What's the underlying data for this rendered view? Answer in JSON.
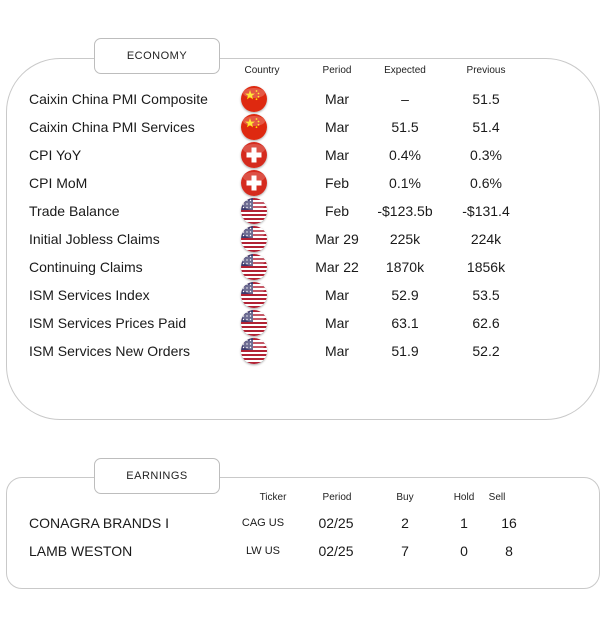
{
  "economy": {
    "title": "ECONOMY",
    "headers": {
      "country": "Country",
      "period": "Period",
      "expected": "Expected",
      "previous": "Previous"
    },
    "rows": [
      {
        "name": "Caixin China PMI Composite",
        "flag": "china-flag-icon",
        "period": "Mar",
        "expected": "–",
        "previous": "51.5"
      },
      {
        "name": "Caixin China PMI Services",
        "flag": "china-flag-icon",
        "period": "Mar",
        "expected": "51.5",
        "previous": "51.4"
      },
      {
        "name": "CPI YoY",
        "flag": "switzerland-flag-icon",
        "period": "Mar",
        "expected": "0.4%",
        "previous": "0.3%"
      },
      {
        "name": "CPI MoM",
        "flag": "switzerland-flag-icon",
        "period": "Feb",
        "expected": "0.1%",
        "previous": "0.6%"
      },
      {
        "name": "Trade Balance",
        "flag": "usa-flag-icon",
        "period": "Feb",
        "expected": "-$123.5b",
        "previous": "-$131.4"
      },
      {
        "name": "Initial Jobless Claims",
        "flag": "usa-flag-icon",
        "period": "Mar 29",
        "expected": "225k",
        "previous": "224k"
      },
      {
        "name": "Continuing Claims",
        "flag": "usa-flag-icon",
        "period": "Mar 22",
        "expected": "1870k",
        "previous": "1856k"
      },
      {
        "name": "ISM Services Index",
        "flag": "usa-flag-icon",
        "period": "Mar",
        "expected": "52.9",
        "previous": "53.5"
      },
      {
        "name": "ISM Services Prices Paid",
        "flag": "usa-flag-icon",
        "period": "Mar",
        "expected": "63.1",
        "previous": "62.6"
      },
      {
        "name": "ISM Services New Orders",
        "flag": "usa-flag-icon",
        "period": "Mar",
        "expected": "51.9",
        "previous": "52.2"
      }
    ]
  },
  "earnings": {
    "title": "EARNINGS",
    "headers": {
      "ticker": "Ticker",
      "period": "Period",
      "buy": "Buy",
      "hold": "Hold",
      "sell": "Sell"
    },
    "rows": [
      {
        "name": "CONAGRA BRANDS I",
        "ticker": "CAG US",
        "period": "02/25",
        "buy": "2",
        "hold": "1",
        "sell": "16"
      },
      {
        "name": "LAMB WESTON",
        "ticker": "LW US",
        "period": "02/25",
        "buy": "7",
        "hold": "0",
        "sell": "8"
      }
    ]
  },
  "colors": {
    "china_red": "#de2910",
    "china_star": "#ffde00",
    "swiss_red": "#d52b1e",
    "us_red": "#b22234",
    "us_blue": "#3c3b6e"
  }
}
